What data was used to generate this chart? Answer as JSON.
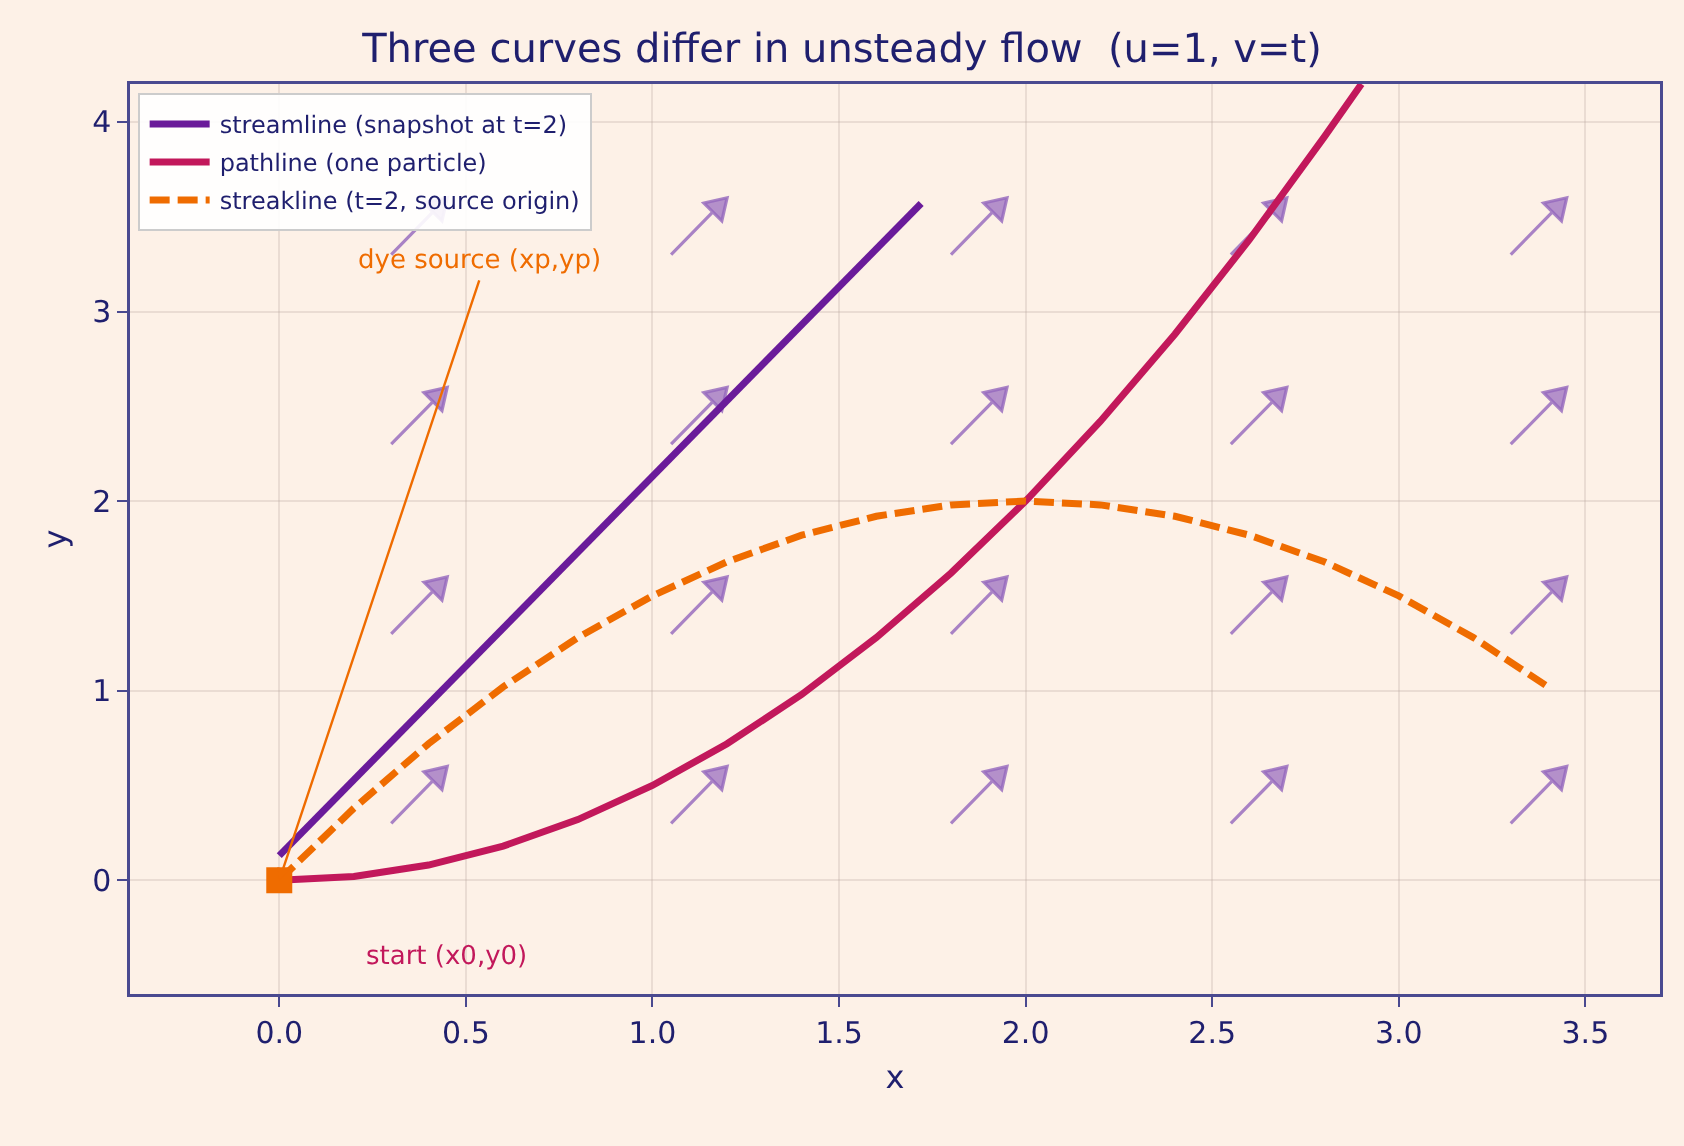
{
  "chart_data": {
    "type": "line",
    "title": "Three curves differ in unsteady flow  (u=1, v=t)",
    "xlabel": "x",
    "ylabel": "y",
    "xlim": [
      -0.4,
      3.7
    ],
    "ylim": [
      -0.6,
      4.2
    ],
    "xticks": [
      {
        "value": 0,
        "label": "0.0"
      },
      {
        "value": 0.5,
        "label": "0.5"
      },
      {
        "value": 1,
        "label": "1.0"
      },
      {
        "value": 1.5,
        "label": "1.5"
      },
      {
        "value": 2,
        "label": "2.0"
      },
      {
        "value": 2.5,
        "label": "2.5"
      },
      {
        "value": 3,
        "label": "3.0"
      },
      {
        "value": 3.5,
        "label": "3.5"
      }
    ],
    "yticks": [
      0,
      1,
      2,
      3,
      4
    ],
    "grid": true,
    "legend": "top left",
    "series": [
      {
        "name": "streamline (snapshot at t=2)",
        "color": "#6a1b9a",
        "x": [
          0,
          1.72
        ],
        "values": [
          0.13,
          3.57
        ]
      },
      {
        "name": "pathline (one particle)",
        "color": "#c2185b",
        "x": [
          0,
          0.2,
          0.4,
          0.6,
          0.8,
          1.0,
          1.2,
          1.4,
          1.6,
          1.8,
          2.0,
          2.2,
          2.4,
          2.6,
          2.8,
          2.9
        ],
        "values": [
          0,
          0.02,
          0.08,
          0.18,
          0.32,
          0.5,
          0.72,
          0.98,
          1.28,
          1.62,
          2.0,
          2.42,
          2.88,
          3.38,
          3.92,
          4.2
        ]
      },
      {
        "name": "streakline (t=2, source origin)",
        "color": "#ef6c00",
        "line_style": "dashed",
        "x": [
          0,
          0.2,
          0.4,
          0.6,
          0.8,
          1.0,
          1.2,
          1.4,
          1.6,
          1.8,
          2.0,
          2.2,
          2.4,
          2.6,
          2.8,
          3.0,
          3.2,
          3.4
        ],
        "values": [
          0,
          0.38,
          0.72,
          1.02,
          1.28,
          1.5,
          1.68,
          1.82,
          1.92,
          1.98,
          2.0,
          1.98,
          1.92,
          1.82,
          1.68,
          1.5,
          1.28,
          1.02
        ]
      },
      {
        "type": "scatter",
        "color": "#ef6c00",
        "marker": "square",
        "x": [
          0
        ],
        "values": [
          0
        ]
      }
    ],
    "annotations": [
      {
        "text": "dye source (xp,yp)",
        "x": 0,
        "y": 0
      },
      "start (x0,y0)"
    ]
  }
}
